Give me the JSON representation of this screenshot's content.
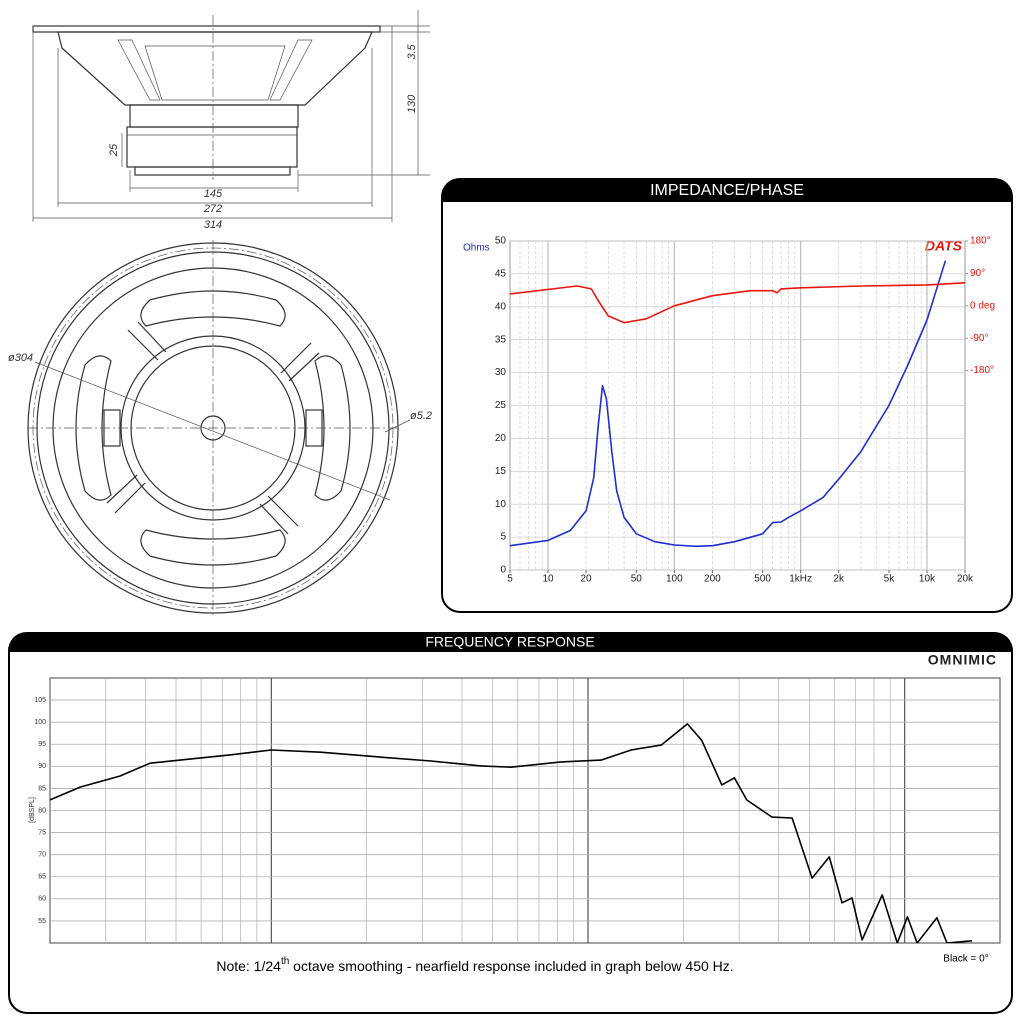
{
  "drawing": {
    "labels": [
      "3.5",
      "130",
      "25",
      "145",
      "272",
      "314",
      "ø304",
      "ø5.2"
    ]
  },
  "chart_data": [
    {
      "type": "line",
      "title": "IMPEDANCE/PHASE",
      "logo": "DATS",
      "ylabel": "Ohms",
      "xscale": "log",
      "xlim": [
        5,
        20000
      ],
      "ylim": [
        0,
        50
      ],
      "y2lim": [
        -734,
        180
      ],
      "xticks": [
        5,
        10,
        20,
        50,
        100,
        200,
        500,
        {
          "value": 1000,
          "label": "1kHz"
        },
        {
          "value": 2000,
          "label": "2k"
        },
        {
          "value": 5000,
          "label": "5k"
        },
        {
          "value": 10000,
          "label": "10k"
        },
        {
          "value": 20000,
          "label": "20k"
        }
      ],
      "yticks": [
        0,
        5,
        10,
        15,
        20,
        25,
        30,
        35,
        40,
        45,
        50
      ],
      "y2ticks": [
        {
          "value": 180,
          "label": "180°"
        },
        {
          "value": 90,
          "label": "90°"
        },
        {
          "value": 0,
          "label": "0 deg"
        },
        {
          "value": -90,
          "label": "-90°"
        },
        {
          "value": -180,
          "label": "-180°"
        }
      ],
      "grid": true,
      "series": [
        {
          "color": "#1f2fd0",
          "x": [
            5,
            10,
            15,
            20,
            23,
            25,
            27,
            29,
            32,
            35,
            40,
            50,
            70,
            100,
            150,
            200,
            300,
            500,
            600,
            700,
            800,
            1000,
            1500,
            2000,
            3000,
            5000,
            7000,
            10000,
            14000
          ],
          "values": [
            3.7,
            4.5,
            6,
            9,
            14,
            22,
            28,
            26,
            18,
            12,
            8,
            5.5,
            4.3,
            3.8,
            3.6,
            3.7,
            4.3,
            5.5,
            7.2,
            7.3,
            8,
            9,
            11,
            13.8,
            18,
            25,
            31,
            38,
            47
          ]
        },
        {
          "color": "#e8160c",
          "axis": "y2",
          "x": [
            5,
            17,
            22,
            25,
            30,
            40,
            60,
            100,
            200,
            400,
            600,
            650,
            700,
            1000,
            3000,
            10000,
            20000
          ],
          "values": [
            33,
            55,
            47,
            14,
            -28,
            -47,
            -36,
            0,
            28,
            42,
            42,
            36,
            47,
            50,
            55,
            58,
            64
          ]
        }
      ]
    },
    {
      "type": "line",
      "title": "FREQUENCY RESPONSE",
      "logo": "OMNIMIC",
      "ylabel": "[dBSPL]",
      "xscale": "log",
      "xlim": [
        20,
        20000
      ],
      "ylim": [
        50,
        110
      ],
      "yticks": [
        55,
        60,
        65,
        70,
        75,
        80,
        85,
        90,
        95,
        100,
        105
      ],
      "grid": true,
      "note": [
        "Note: 1/24",
        "th",
        " octave smoothing - nearfield response included in graph below 450 Hz."
      ],
      "annotation": "Black = 0°",
      "series": [
        {
          "color": "#000000",
          "x": [
            20,
            24.9,
            33.3,
            41.4,
            51.5,
            74,
            100,
            143,
            221,
            319,
            459,
            571,
            822,
            1100,
            1368,
            1703,
            2060,
            2285,
            2645,
            2900,
            3170,
            3810,
            4410,
            5100,
            5780,
            6340,
            6820,
            7340,
            8490,
            9480,
            10200,
            10950,
            12640,
            13600,
            16300
          ],
          "values": [
            82.4,
            85.3,
            87.8,
            90.7,
            91.4,
            92.6,
            93.7,
            93.2,
            92.1,
            91.2,
            90.1,
            89.8,
            91,
            91.4,
            93.7,
            94.8,
            99.6,
            95.9,
            85.8,
            87.4,
            82.4,
            78.5,
            78.3,
            64.7,
            69.5,
            59.1,
            60.2,
            50.7,
            60.9,
            50,
            55.9,
            50,
            55.7,
            50,
            50.5
          ]
        }
      ]
    }
  ]
}
